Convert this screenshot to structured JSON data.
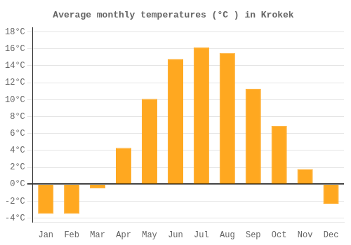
{
  "chart_data": {
    "type": "bar",
    "title": "Average monthly temperatures (°C ) in Krokek",
    "categories": [
      "Jan",
      "Feb",
      "Mar",
      "Apr",
      "May",
      "Jun",
      "Jul",
      "Aug",
      "Sep",
      "Oct",
      "Nov",
      "Dec"
    ],
    "values": [
      -3.5,
      -3.5,
      -0.5,
      4.3,
      10.1,
      14.8,
      16.2,
      15.5,
      11.3,
      6.9,
      1.8,
      -2.3
    ],
    "color": "#FFA820",
    "ylim": [
      -4.5,
      18.5
    ],
    "yticks": [
      {
        "value": -4,
        "label": "-4°C"
      },
      {
        "value": -2,
        "label": "-2°C"
      },
      {
        "value": 0,
        "label": "0°C"
      },
      {
        "value": 2,
        "label": "2°C"
      },
      {
        "value": 4,
        "label": "4°C"
      },
      {
        "value": 6,
        "label": "6°C"
      },
      {
        "value": 8,
        "label": "8°C"
      },
      {
        "value": 10,
        "label": "10°C"
      },
      {
        "value": 12,
        "label": "12°C"
      },
      {
        "value": 14,
        "label": "14°C"
      },
      {
        "value": 16,
        "label": "16°C"
      },
      {
        "value": 18,
        "label": "18°C"
      }
    ],
    "grid": true
  }
}
